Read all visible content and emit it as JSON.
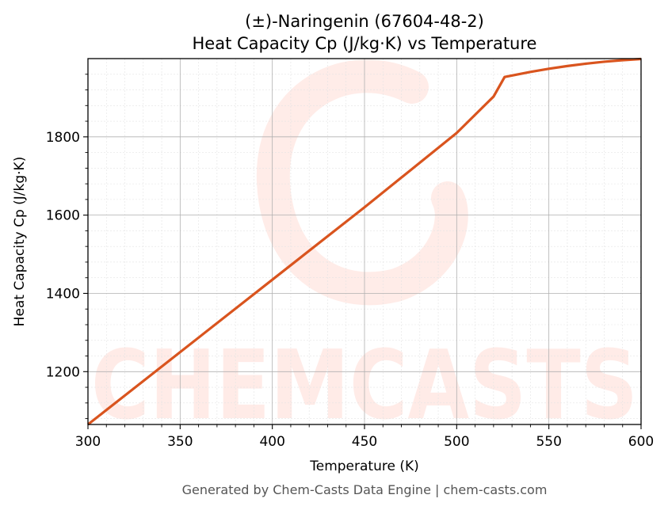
{
  "chart_data": {
    "type": "line",
    "title": "(±)-Naringenin (67604-48-2)",
    "subtitle": "Heat Capacity Cp (J/kg·K) vs Temperature",
    "xlabel": "Temperature (K)",
    "ylabel": "Heat Capacity Cp (J/kg·K)",
    "xlim": [
      300,
      600
    ],
    "ylim": [
      1065,
      2000
    ],
    "x_ticks": [
      300,
      350,
      400,
      450,
      500,
      550,
      600
    ],
    "y_ticks": [
      1200,
      1400,
      1600,
      1800
    ],
    "grid": true,
    "line_color": "#d9541e",
    "series": [
      {
        "x": [
          300,
          350,
          400,
          450,
          500,
          520,
          526,
          540,
          550,
          560,
          570,
          580,
          590,
          600
        ],
        "values": [
          1065,
          1250,
          1435,
          1620,
          1810,
          1903,
          1953,
          1966,
          1974,
          1981,
          1987,
          1992,
          1996,
          1999
        ]
      }
    ]
  },
  "watermark": "CHEMCASTS",
  "footer": "Generated by Chem-Casts Data Engine | chem-casts.com"
}
